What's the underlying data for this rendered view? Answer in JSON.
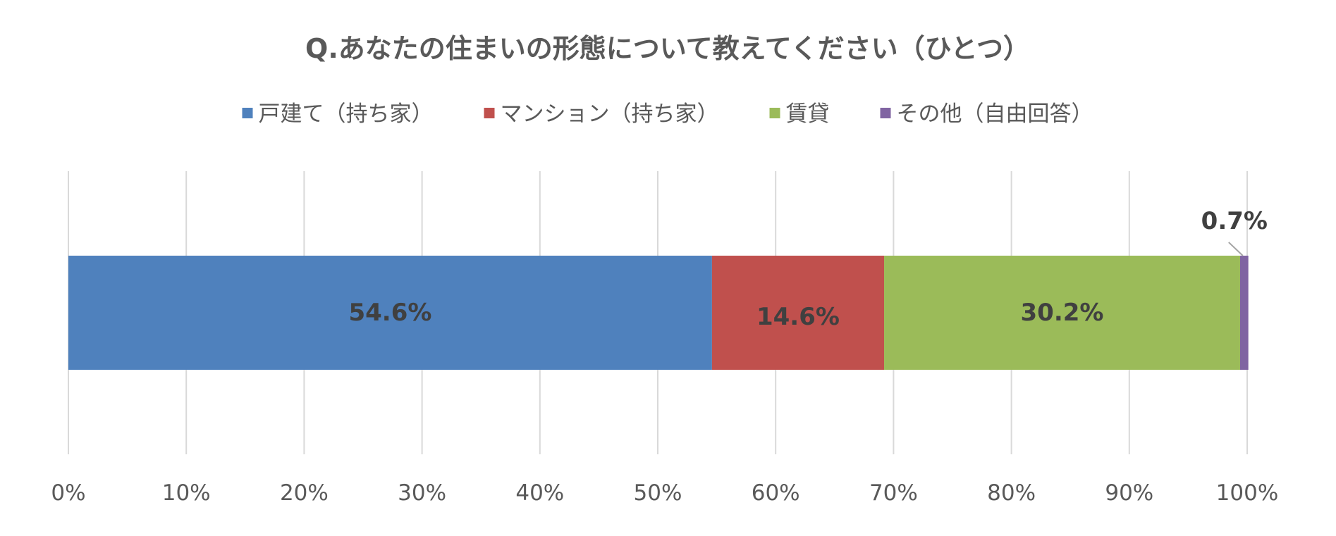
{
  "chart_data": {
    "type": "bar",
    "orientation": "horizontal",
    "stacked": true,
    "title": "Q.あなたの住まいの形態について教えてください（ひとつ）",
    "legend_position": "top",
    "grid": true,
    "xlim": [
      0,
      100
    ],
    "x_ticks": [
      "0%",
      "10%",
      "20%",
      "30%",
      "40%",
      "50%",
      "60%",
      "70%",
      "80%",
      "90%",
      "100%"
    ],
    "series": [
      {
        "name": "戸建て（持ち家）",
        "value": 54.6,
        "label": "54.6%",
        "color": "#4f81bd"
      },
      {
        "name": "マンション（持ち家）",
        "value": 14.6,
        "label": "14.6%",
        "color": "#c0504d"
      },
      {
        "name": "賃貸",
        "value": 30.2,
        "label": "30.2%",
        "color": "#9bbb59"
      },
      {
        "name": "その他（自由回答）",
        "value": 0.7,
        "label": "0.7%",
        "color": "#8064a2",
        "label_outside": true
      }
    ]
  }
}
